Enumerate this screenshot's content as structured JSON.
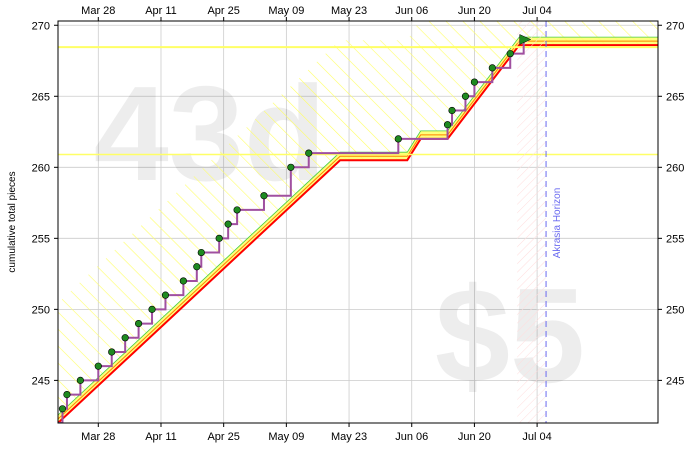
{
  "chart_data": {
    "type": "line",
    "ylabel": "cumulative total pieces",
    "ylim": [
      242,
      270.3
    ],
    "x_range": [
      "2012-03-19",
      "2012-07-31"
    ],
    "y_ticks": [
      245,
      250,
      255,
      260,
      265,
      270
    ],
    "y_tick_labels": [
      "245",
      "250",
      "255",
      "260",
      "265",
      "270"
    ],
    "x_ticks": [
      "2012-03-28",
      "2012-04-11",
      "2012-04-25",
      "2012-05-09",
      "2012-05-23",
      "2012-06-06",
      "2012-06-20",
      "2012-07-04"
    ],
    "x_tick_labels": [
      "Mar 28",
      "Apr 11",
      "Apr 25",
      "May 09",
      "May 23",
      "Jun 06",
      "Jun 20",
      "Jul 04"
    ],
    "watermark_main": "43d",
    "watermark_pledge": "$5",
    "horizon_label": "Akrasia Horizon",
    "horizon_date": "2012-07-06",
    "today_date": "2012-06-30",
    "yellow_brick_road": [
      [
        "2012-03-19",
        242
      ],
      [
        "2012-05-21",
        260.5
      ],
      [
        "2012-06-05",
        260.5
      ],
      [
        "2012-06-08",
        262
      ],
      [
        "2012-06-14",
        262
      ],
      [
        "2012-06-30",
        268.6
      ],
      [
        "2012-07-31",
        268.6
      ]
    ],
    "datapoints": [
      [
        "2012-03-20",
        243
      ],
      [
        "2012-03-21",
        244
      ],
      [
        "2012-03-24",
        245
      ],
      [
        "2012-03-28",
        246
      ],
      [
        "2012-03-31",
        247
      ],
      [
        "2012-04-03",
        248
      ],
      [
        "2012-04-06",
        249
      ],
      [
        "2012-04-09",
        250
      ],
      [
        "2012-04-12",
        251
      ],
      [
        "2012-04-16",
        252
      ],
      [
        "2012-04-19",
        253
      ],
      [
        "2012-04-20",
        254
      ],
      [
        "2012-04-24",
        255
      ],
      [
        "2012-04-26",
        256
      ],
      [
        "2012-04-28",
        257
      ],
      [
        "2012-05-04",
        258
      ],
      [
        "2012-05-10",
        260
      ],
      [
        "2012-05-14",
        261
      ],
      [
        "2012-06-03",
        262
      ],
      [
        "2012-06-14",
        263
      ],
      [
        "2012-06-15",
        264
      ],
      [
        "2012-06-18",
        265
      ],
      [
        "2012-06-20",
        266
      ],
      [
        "2012-06-24",
        267
      ],
      [
        "2012-06-28",
        268
      ],
      [
        "2012-07-01",
        269
      ]
    ],
    "colors": {
      "road_red": "#ff0000",
      "road_yellow": "#ffff66",
      "road_orange": "#ff8000",
      "steps": "#a050a0",
      "point_fill": "#1f8a1f",
      "trend_green": "#44cc44",
      "horizon_line": "#6a6af0",
      "grid": "#cccccc"
    }
  }
}
